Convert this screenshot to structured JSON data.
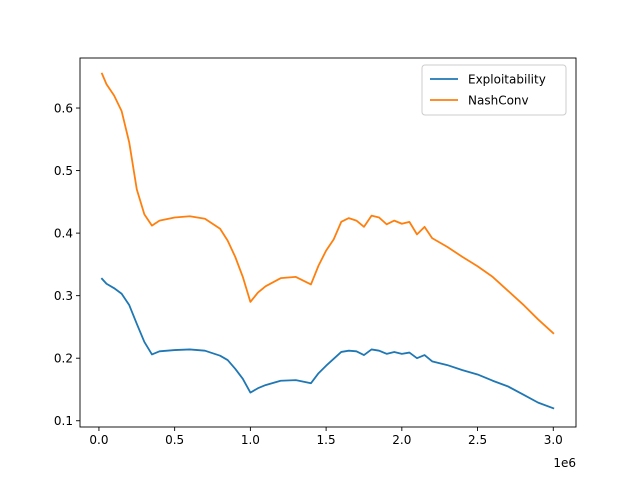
{
  "chart_data": {
    "type": "line",
    "title": "",
    "xlabel": "",
    "ylabel": "",
    "x_offset_label": "1e6",
    "xlim": [
      -0.125,
      3.15
    ],
    "ylim": [
      0.09,
      0.68
    ],
    "x_ticks": [
      {
        "value": 0.0,
        "label": "0.0"
      },
      {
        "value": 0.5,
        "label": "0.5"
      },
      {
        "value": 1.0,
        "label": "1.0"
      },
      {
        "value": 1.5,
        "label": "1.5"
      },
      {
        "value": 2.0,
        "label": "2.0"
      },
      {
        "value": 2.5,
        "label": "2.5"
      },
      {
        "value": 3.0,
        "label": "3.0"
      }
    ],
    "y_ticks": [
      {
        "value": 0.1,
        "label": "0.1"
      },
      {
        "value": 0.2,
        "label": "0.2"
      },
      {
        "value": 0.3,
        "label": "0.3"
      },
      {
        "value": 0.4,
        "label": "0.4"
      },
      {
        "value": 0.5,
        "label": "0.5"
      },
      {
        "value": 0.6,
        "label": "0.6"
      }
    ],
    "grid": false,
    "legend_position": "top-right",
    "series": [
      {
        "name": "Exploitability",
        "color": "#1f77b4",
        "x": [
          0.02,
          0.05,
          0.1,
          0.15,
          0.2,
          0.25,
          0.3,
          0.35,
          0.4,
          0.5,
          0.6,
          0.7,
          0.8,
          0.85,
          0.9,
          0.95,
          1.0,
          1.05,
          1.1,
          1.2,
          1.3,
          1.4,
          1.45,
          1.5,
          1.55,
          1.6,
          1.65,
          1.7,
          1.75,
          1.8,
          1.85,
          1.9,
          1.95,
          2.0,
          2.05,
          2.1,
          2.15,
          2.2,
          2.3,
          2.4,
          2.5,
          2.6,
          2.7,
          2.8,
          2.9,
          3.0
        ],
        "y": [
          0.327,
          0.319,
          0.312,
          0.303,
          0.285,
          0.255,
          0.226,
          0.206,
          0.211,
          0.213,
          0.214,
          0.212,
          0.204,
          0.197,
          0.183,
          0.167,
          0.145,
          0.152,
          0.157,
          0.164,
          0.165,
          0.16,
          0.176,
          0.188,
          0.199,
          0.21,
          0.212,
          0.211,
          0.205,
          0.214,
          0.212,
          0.207,
          0.21,
          0.207,
          0.209,
          0.2,
          0.205,
          0.195,
          0.189,
          0.181,
          0.174,
          0.164,
          0.155,
          0.142,
          0.129,
          0.12
        ]
      },
      {
        "name": "NashConv",
        "color": "#ff7f0e",
        "x": [
          0.02,
          0.05,
          0.1,
          0.15,
          0.2,
          0.25,
          0.3,
          0.35,
          0.4,
          0.5,
          0.6,
          0.7,
          0.8,
          0.85,
          0.9,
          0.95,
          1.0,
          1.05,
          1.1,
          1.2,
          1.3,
          1.4,
          1.45,
          1.5,
          1.55,
          1.6,
          1.65,
          1.7,
          1.75,
          1.8,
          1.85,
          1.9,
          1.95,
          2.0,
          2.05,
          2.1,
          2.15,
          2.2,
          2.3,
          2.4,
          2.5,
          2.6,
          2.7,
          2.8,
          2.9,
          3.0
        ],
        "y": [
          0.655,
          0.638,
          0.62,
          0.595,
          0.545,
          0.47,
          0.43,
          0.412,
          0.42,
          0.425,
          0.427,
          0.423,
          0.407,
          0.388,
          0.362,
          0.33,
          0.29,
          0.305,
          0.315,
          0.328,
          0.33,
          0.318,
          0.348,
          0.372,
          0.39,
          0.418,
          0.424,
          0.42,
          0.41,
          0.428,
          0.425,
          0.414,
          0.42,
          0.415,
          0.418,
          0.398,
          0.41,
          0.392,
          0.378,
          0.362,
          0.347,
          0.33,
          0.308,
          0.286,
          0.262,
          0.24
        ]
      }
    ]
  }
}
